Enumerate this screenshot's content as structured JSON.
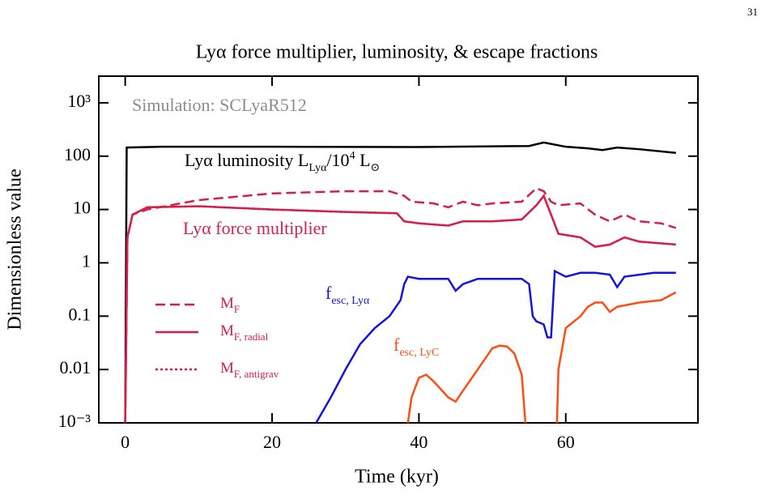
{
  "page_number": "31",
  "chart_data": {
    "type": "line",
    "title": "Lyα force multiplier, luminosity, & escape fractions",
    "xlabel": "Time (kyr)",
    "ylabel": "Dimensionless value",
    "ylog": true,
    "xlim": [
      -3.6,
      78
    ],
    "ylim": [
      0.001,
      3162
    ],
    "xticks": [
      0,
      20,
      40,
      60
    ],
    "yticks": [
      {
        "value": 0.001,
        "label": "10⁻³"
      },
      0.01,
      0.1,
      1,
      10,
      100,
      {
        "value": 1000,
        "label": "10³"
      }
    ],
    "annotations": [
      {
        "color": "#8c8c8c",
        "parts": [
          {
            "text": "Simulation: SCLyaR512"
          }
        ]
      },
      {
        "color": "#000000",
        "parts": [
          {
            "text": "Lyα luminosity L"
          },
          {
            "text": "Lyα",
            "shift": "sub"
          },
          {
            "text": "/10"
          },
          {
            "text": "4",
            "shift": "super"
          },
          {
            "text": " L"
          },
          {
            "text": "⊙",
            "shift": "sub"
          }
        ]
      },
      {
        "color": "#d81e48",
        "parts": [
          {
            "text": "Lyα force multiplier"
          }
        ]
      },
      {
        "color": "#1414dc",
        "parts": [
          {
            "text": "f"
          },
          {
            "text": "esc, Lyα",
            "shift": "sub"
          }
        ]
      },
      {
        "color": "#ff4d12",
        "parts": [
          {
            "text": "f"
          },
          {
            "text": "esc, LyC",
            "shift": "sub"
          }
        ]
      }
    ],
    "series": [
      {
        "color": "#000000",
        "dash": "solid",
        "x": [
          0,
          0.2,
          5,
          20,
          40,
          55,
          57,
          60,
          63,
          65,
          67,
          70,
          75
        ],
        "values": [
          0.001,
          145,
          150,
          150,
          148,
          155,
          180,
          150,
          140,
          130,
          145,
          135,
          115
        ]
      },
      {
        "name": "M",
        "name_sub": "F",
        "color": "#d81e48",
        "dash": "dashed",
        "x": [
          0,
          0.3,
          1,
          3,
          10,
          20,
          30,
          36,
          38,
          39,
          42,
          44,
          46,
          48,
          50,
          54,
          56,
          57,
          58,
          59,
          62,
          64,
          66,
          68,
          70,
          73,
          75
        ],
        "values": [
          0.001,
          3,
          8,
          10,
          15,
          20,
          22,
          22,
          18,
          14,
          13,
          11,
          14,
          12,
          13,
          14,
          25,
          22,
          14,
          12,
          13,
          8,
          6,
          8,
          6,
          5.5,
          4.5
        ]
      },
      {
        "name": "M",
        "name_sub": "F, radial",
        "color": "#d81e48",
        "dash": "solid",
        "x": [
          0,
          0.3,
          1,
          3,
          10,
          20,
          30,
          37,
          38,
          40,
          44,
          46,
          50,
          54,
          56,
          57,
          58,
          59,
          62,
          64,
          66,
          68,
          70,
          75
        ],
        "values": [
          0.001,
          3,
          8,
          11,
          11.5,
          10,
          9,
          8.5,
          6,
          5.5,
          5,
          6,
          6,
          6.5,
          12,
          18,
          8,
          3.5,
          3,
          2,
          2.2,
          3,
          2.5,
          2.2
        ]
      },
      {
        "name": "M",
        "name_sub": "F, antigrav",
        "color": "#d81e48",
        "dash": "dotted",
        "x": [
          0,
          0.3,
          1,
          3,
          10,
          20,
          30,
          37,
          38,
          40,
          44,
          46,
          50,
          54,
          56,
          57,
          58,
          59,
          62,
          64,
          66,
          68,
          70,
          75
        ],
        "values": [
          0.001,
          3,
          8,
          11,
          11.5,
          10,
          9,
          8.5,
          6,
          5.5,
          5,
          6,
          6,
          6.5,
          12,
          18,
          8,
          3.5,
          3,
          2,
          2.2,
          3,
          2.5,
          2.2
        ]
      },
      {
        "color": "#1414dc",
        "dash": "solid",
        "x": [
          26,
          28,
          30,
          32,
          34,
          36,
          37.5,
          38,
          38.5,
          40,
          42,
          44,
          45,
          46,
          48,
          52,
          54,
          55,
          55.5,
          56,
          57,
          57.5,
          58,
          58.5,
          60,
          62,
          64,
          66,
          67,
          68,
          72,
          75
        ],
        "values": [
          0.001,
          0.003,
          0.01,
          0.03,
          0.06,
          0.1,
          0.2,
          0.4,
          0.55,
          0.5,
          0.5,
          0.5,
          0.3,
          0.4,
          0.5,
          0.5,
          0.5,
          0.4,
          0.1,
          0.08,
          0.07,
          0.04,
          0.04,
          0.7,
          0.55,
          0.65,
          0.65,
          0.6,
          0.35,
          0.55,
          0.65,
          0.65
        ]
      },
      {
        "color": "#ff4d12",
        "dash": "solid",
        "x": [
          38.5,
          39,
          40,
          41,
          42,
          44,
          45,
          46,
          48,
          50,
          51,
          52,
          53,
          54,
          54.5,
          56,
          58.8,
          59,
          60,
          62,
          63,
          64,
          65,
          66,
          67,
          70,
          73,
          75
        ],
        "values": [
          0.001,
          0.003,
          0.007,
          0.008,
          0.006,
          0.003,
          0.0025,
          0.004,
          0.01,
          0.025,
          0.028,
          0.027,
          0.02,
          0.008,
          0.001,
          null,
          0.001,
          0.01,
          0.06,
          0.1,
          0.15,
          0.18,
          0.18,
          0.12,
          0.15,
          0.18,
          0.2,
          0.28
        ]
      }
    ]
  }
}
